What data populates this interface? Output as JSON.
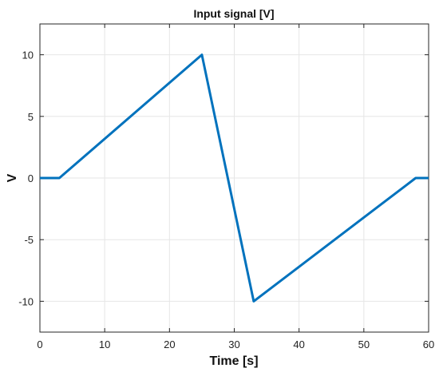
{
  "chart_data": {
    "type": "line",
    "title": "Input signal [V]",
    "xlabel": "Time [s]",
    "ylabel": "V",
    "xlim": [
      0,
      60
    ],
    "ylim": [
      -12.5,
      12.5
    ],
    "xticks": [
      0,
      10,
      20,
      30,
      40,
      50,
      60
    ],
    "yticks": [
      -10,
      -5,
      0,
      5,
      10
    ],
    "xtick_labels": [
      "0",
      "10",
      "20",
      "30",
      "40",
      "50",
      "60"
    ],
    "ytick_labels": [
      "-10",
      "-5",
      "0",
      "5",
      "10"
    ],
    "grid": true,
    "legend": "none",
    "colors": {
      "line": "#0072BD",
      "grid": "#e6e6e6",
      "axes": "#262626"
    },
    "series": [
      {
        "x": [
          0,
          3,
          25,
          33,
          58,
          60
        ],
        "y": [
          0,
          0,
          10,
          -10,
          0,
          0
        ]
      }
    ]
  }
}
